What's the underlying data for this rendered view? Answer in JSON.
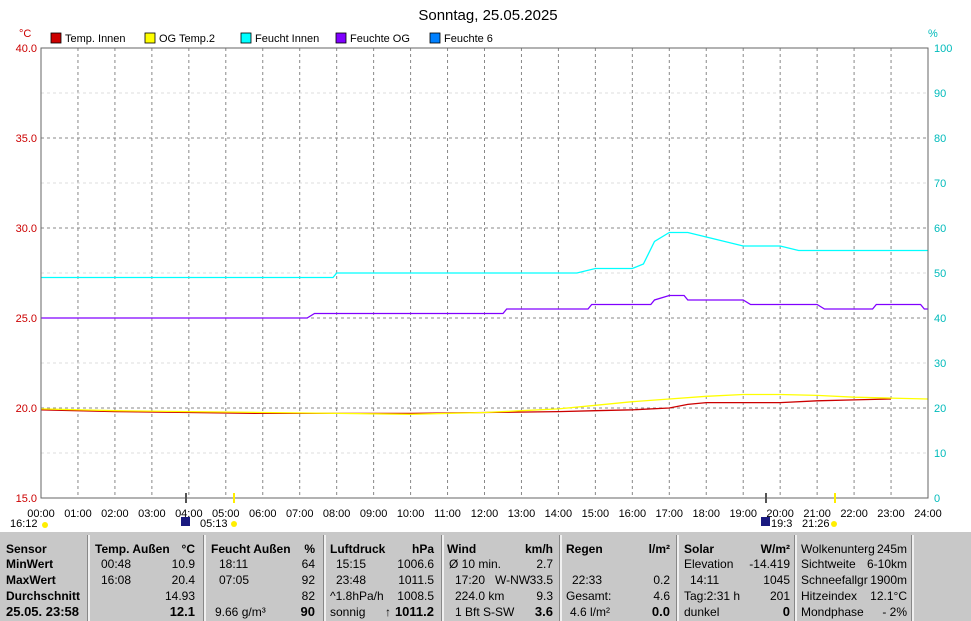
{
  "title": "Sonntag, 25.05.2025",
  "chart_data": {
    "type": "line",
    "title": "Sonntag, 25.05.2025",
    "y_left_unit": "°C",
    "y_right_unit": "%",
    "y_left_range": [
      15,
      40
    ],
    "y_right_range": [
      0,
      100
    ],
    "y_left_ticks": [
      "40.0",
      "35.0",
      "30.0",
      "25.0",
      "20.0",
      "15.0"
    ],
    "y_right_ticks": [
      "100",
      "90",
      "80",
      "70",
      "60",
      "50",
      "40",
      "30",
      "20",
      "10",
      "0"
    ],
    "x_range": [
      0,
      24
    ],
    "x_ticks": [
      "00:00",
      "01:00",
      "02:00",
      "03:00",
      "04:00",
      "05:00",
      "06:00",
      "07:00",
      "08:00",
      "09:00",
      "10:00",
      "11:00",
      "12:00",
      "13:00",
      "14:00",
      "15:00",
      "16:00",
      "17:00",
      "18:00",
      "19:00",
      "20:00",
      "21:00",
      "22:00",
      "23:00",
      "24:00"
    ],
    "grid": true,
    "legend_position": "top",
    "series": [
      {
        "name": "Temp. Innen",
        "color": "#cc0000",
        "axis": "left",
        "points": [
          [
            0,
            19.9
          ],
          [
            2,
            19.8
          ],
          [
            4,
            19.75
          ],
          [
            6,
            19.7
          ],
          [
            8,
            19.7
          ],
          [
            10,
            19.7
          ],
          [
            12,
            19.75
          ],
          [
            14,
            19.8
          ],
          [
            15,
            19.85
          ],
          [
            16,
            19.9
          ],
          [
            17,
            20.0
          ],
          [
            17.5,
            20.2
          ],
          [
            18,
            20.3
          ],
          [
            19,
            20.3
          ],
          [
            20,
            20.3
          ],
          [
            21,
            20.4
          ],
          [
            22,
            20.45
          ],
          [
            23,
            20.5
          ]
        ]
      },
      {
        "name": "OG Temp.2",
        "color": "#ffff00",
        "axis": "left",
        "points": [
          [
            0,
            19.95
          ],
          [
            2,
            19.85
          ],
          [
            4,
            19.8
          ],
          [
            6,
            19.75
          ],
          [
            8,
            19.7
          ],
          [
            10,
            19.65
          ],
          [
            12,
            19.75
          ],
          [
            13,
            19.85
          ],
          [
            14,
            19.95
          ],
          [
            15,
            20.15
          ],
          [
            16,
            20.35
          ],
          [
            17,
            20.5
          ],
          [
            18,
            20.65
          ],
          [
            19,
            20.75
          ],
          [
            20,
            20.75
          ],
          [
            21,
            20.7
          ],
          [
            22,
            20.6
          ],
          [
            23,
            20.55
          ],
          [
            24,
            20.5
          ]
        ]
      },
      {
        "name": "Feucht Innen",
        "color": "#00ffff",
        "axis": "right",
        "points": [
          [
            0,
            49
          ],
          [
            7.9,
            49
          ],
          [
            8,
            50
          ],
          [
            14.5,
            50
          ],
          [
            15,
            51
          ],
          [
            16,
            51
          ],
          [
            16.3,
            52
          ],
          [
            16.6,
            57
          ],
          [
            17,
            59
          ],
          [
            17.5,
            59
          ],
          [
            18,
            58
          ],
          [
            19,
            56
          ],
          [
            20,
            56
          ],
          [
            20.5,
            55
          ],
          [
            21,
            55
          ],
          [
            22,
            55
          ],
          [
            23,
            55
          ],
          [
            24,
            55
          ]
        ]
      },
      {
        "name": "Feuchte OG",
        "color": "#8000ff",
        "axis": "right",
        "points": [
          [
            0,
            40
          ],
          [
            7.2,
            40
          ],
          [
            7.4,
            41
          ],
          [
            12.5,
            41
          ],
          [
            12.6,
            42
          ],
          [
            14.8,
            42
          ],
          [
            14.9,
            43
          ],
          [
            16.5,
            43
          ],
          [
            16.6,
            44
          ],
          [
            17,
            45
          ],
          [
            17.4,
            45
          ],
          [
            17.5,
            44
          ],
          [
            19,
            44
          ],
          [
            19.2,
            43
          ],
          [
            21,
            43
          ],
          [
            21.2,
            42
          ],
          [
            22.5,
            42
          ],
          [
            22.6,
            43
          ],
          [
            23.8,
            43
          ],
          [
            23.9,
            42
          ],
          [
            24,
            42
          ]
        ]
      },
      {
        "name": "Feuchte 6",
        "color": "#0080ff",
        "axis": "right",
        "points": []
      }
    ],
    "markers_left": [
      "16:12",
      "05:13"
    ],
    "markers_right": [
      "19:3",
      "21:26"
    ]
  },
  "table": {
    "sensor": {
      "header": "Sensor",
      "min": "MinWert",
      "max": "MaxWert",
      "avg": "Durchschnitt",
      "date": "25.05. 23:58"
    },
    "temp": {
      "header": "Temp. Außen",
      "unit": "°C",
      "min_time": "00:48",
      "min_val": "10.9",
      "max_time": "16:08",
      "max_val": "20.4",
      "avg": "14.93",
      "current": "12.1"
    },
    "feucht": {
      "header": "Feucht Außen",
      "unit": "%",
      "min_time": "18:11",
      "min_val": "64",
      "max_time": "07:05",
      "max_val": "92",
      "avg": "82",
      "abs": "9.66 g/m³",
      "current": "90"
    },
    "luft": {
      "header": "Luftdruck",
      "unit": "hPa",
      "min_time": "15:15",
      "min_val": "1006.6",
      "max_time": "23:48",
      "max_val": "1011.5",
      "trend_label": "^1.8hPa/h",
      "trend_val": "1008.5",
      "weather": "sonnig",
      "current": "1011.2"
    },
    "wind": {
      "header": "Wind",
      "unit": "km/h",
      "r1_label": "Ø 10 min.",
      "r1_val": "2.7",
      "r2_time": "17:20",
      "r2_dir": "W-NW",
      "r2_val": "33.5",
      "r3_label": "224.0 km",
      "r3_val": "9.3",
      "r4_label": "1 Bft S-SW",
      "current": "3.6"
    },
    "regen": {
      "header": "Regen",
      "unit": "l/m²",
      "r2_time": "22:33",
      "r2_val": "0.2",
      "r3_label": "Gesamt:",
      "r3_val": "4.6",
      "r4_label": "4.6 l/m²",
      "current": "0.0"
    },
    "solar": {
      "header": "Solar",
      "unit": "W/m²",
      "r1_label": "Elevation",
      "r1_val": "-14.419",
      "r2_time": "14:11",
      "r2_val": "1045",
      "r3_label": "Tag:2:31 h",
      "r3_val": "201",
      "r4_label": "dunkel",
      "current": "0"
    },
    "extra": {
      "r0_label": "Wolkenunterg",
      "r0_val": "245m",
      "r1_label": "Sichtweite",
      "r1_val": "6-10km",
      "r2_label": "Schneefallgr",
      "r2_val": "1900m",
      "r3_label": "Hitzeindex",
      "r3_val": "12.1°C",
      "r4_label": "Mondphase",
      "r4_val": "- 2%"
    }
  }
}
